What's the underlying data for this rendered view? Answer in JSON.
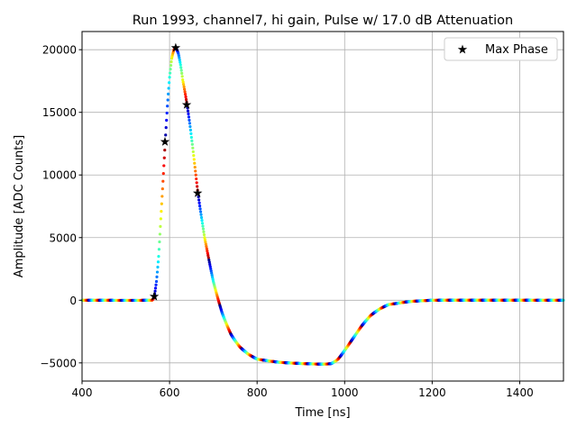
{
  "chart_data": {
    "type": "scatter",
    "title": "Run 1993, channel7, hi gain, Pulse w/ 17.0 dB Attenuation",
    "xlabel": "Time [ns]",
    "ylabel": "Amplitude [ADC Counts]",
    "xlim": [
      400,
      1500
    ],
    "ylim": [
      -6450,
      21450
    ],
    "xticks": [
      400,
      600,
      800,
      1000,
      1200,
      1400
    ],
    "xtick_labels": [
      "400",
      "600",
      "800",
      "1000",
      "1200",
      "1400"
    ],
    "yticks": [
      -5000,
      0,
      5000,
      10000,
      15000,
      20000
    ],
    "ytick_labels": [
      "−5000",
      "0",
      "5000",
      "10000",
      "15000",
      "20000"
    ],
    "grid": true,
    "legend": {
      "position": "top-right",
      "entries": [
        "Max Phase"
      ]
    },
    "color_cycle_ns": 25,
    "pulse_keypoints": {
      "x": [
        400,
        560,
        565,
        570,
        575,
        580,
        585,
        590,
        595,
        600,
        605,
        610,
        615,
        620,
        625,
        630,
        640,
        650,
        665,
        680,
        700,
        720,
        740,
        760,
        780,
        800,
        850,
        900,
        950,
        970,
        985,
        1000,
        1020,
        1040,
        1060,
        1080,
        1100,
        1150,
        1200,
        1500
      ],
      "y": [
        0,
        0,
        300,
        1500,
        3500,
        6500,
        9500,
        12600,
        15500,
        17800,
        19300,
        20000,
        20100,
        19700,
        18800,
        17600,
        15600,
        13000,
        8500,
        5000,
        1500,
        -1000,
        -2700,
        -3700,
        -4300,
        -4700,
        -4950,
        -5050,
        -5100,
        -5050,
        -4700,
        -4000,
        -3000,
        -2000,
        -1200,
        -700,
        -350,
        -100,
        0,
        0
      ]
    },
    "max_phase": {
      "name": "Max Phase",
      "x": [
        565,
        589.5,
        614,
        639,
        664
      ],
      "y": [
        300,
        12650,
        20150,
        15600,
        8550
      ]
    }
  }
}
